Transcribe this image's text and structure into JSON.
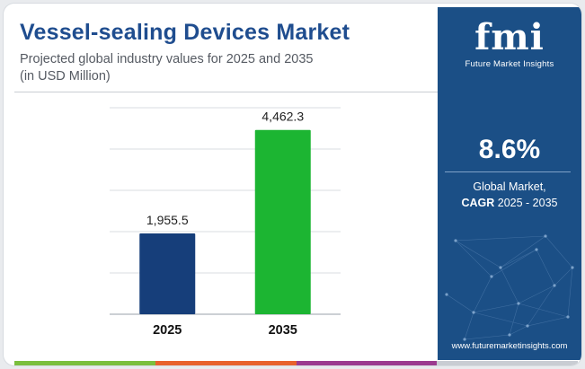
{
  "header": {
    "title": "Vessel-sealing Devices Market",
    "subtitle_line1": "Projected global industry values for 2025 and 2035",
    "subtitle_line2": "(in USD Million)"
  },
  "chart_data": {
    "type": "bar",
    "categories": [
      "2025",
      "2035"
    ],
    "values": [
      1955.5,
      4462.3
    ],
    "value_labels": [
      "1,955.5",
      "4,462.3"
    ],
    "bar_colors": [
      "#163e7a",
      "#1cb532"
    ],
    "ylim": [
      0,
      5000
    ],
    "grid": true,
    "title": "Vessel-sealing Devices Market",
    "xlabel": "",
    "ylabel": ""
  },
  "sidebar": {
    "logo_text": "fmi",
    "logo_subtitle": "Future Market Insights",
    "cagr_value": "8.6%",
    "cagr_label_line1": "Global Market,",
    "cagr_label_bold": "CAGR",
    "cagr_label_period": " 2025 - 2035",
    "website": "www.futuremarketinsights.com",
    "background_color": "#1b4f86"
  },
  "footer_bar_colors": [
    "#7bbf3e",
    "#e8612c",
    "#9b3b8f",
    "#c9cdd3"
  ]
}
